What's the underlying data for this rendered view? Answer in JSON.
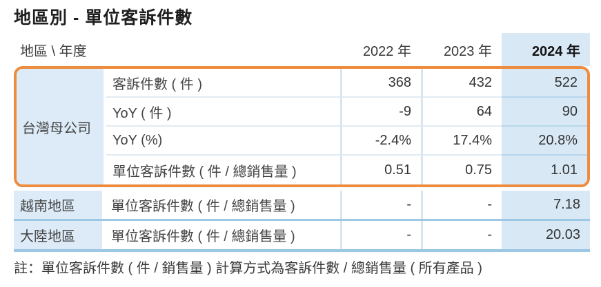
{
  "page": {
    "title": "地區別 - 單位客訴件數",
    "note": "註：單位客訴件數 ( 件 / 銷售量 ) 計算方式為客訴件數 / 總銷售量 ( 所有產品 )"
  },
  "table": {
    "corner_label": "地區 \\ 年度",
    "year_headers": [
      "2022 年",
      "2023 年",
      "2024 年"
    ],
    "highlighted_year": "2024 年",
    "groups": [
      {
        "region": "台灣母公司",
        "highlighted": true,
        "rows": [
          {
            "metric": "客訴件數 ( 件 )",
            "values": [
              "368",
              "432",
              "522"
            ]
          },
          {
            "metric": "YoY ( 件 )",
            "values": [
              "-9",
              "64",
              "90"
            ]
          },
          {
            "metric": "YoY (%)",
            "values": [
              "-2.4%",
              "17.4%",
              "20.8%"
            ]
          },
          {
            "metric": "單位客訴件數 ( 件 / 總銷售量 )",
            "values": [
              "0.51",
              "0.75",
              "1.01"
            ]
          }
        ]
      },
      {
        "region": "越南地區",
        "highlighted": false,
        "rows": [
          {
            "metric": "單位客訴件數 ( 件 / 總銷售量 )",
            "values": [
              "-",
              "-",
              "7.18"
            ]
          }
        ]
      },
      {
        "region": "大陸地區",
        "highlighted": false,
        "rows": [
          {
            "metric": "單位客訴件數 ( 件 / 總銷售量 )",
            "values": [
              "-",
              "-",
              "20.03"
            ]
          }
        ]
      }
    ]
  },
  "colors": {
    "accent_orange": "#ED8C3F",
    "header_highlight_blue": "#D8E8F5",
    "region_column_blue": "#DCEBF7",
    "divider_blue": "#9CC8E6",
    "light_grid": "#D9E5EE"
  }
}
